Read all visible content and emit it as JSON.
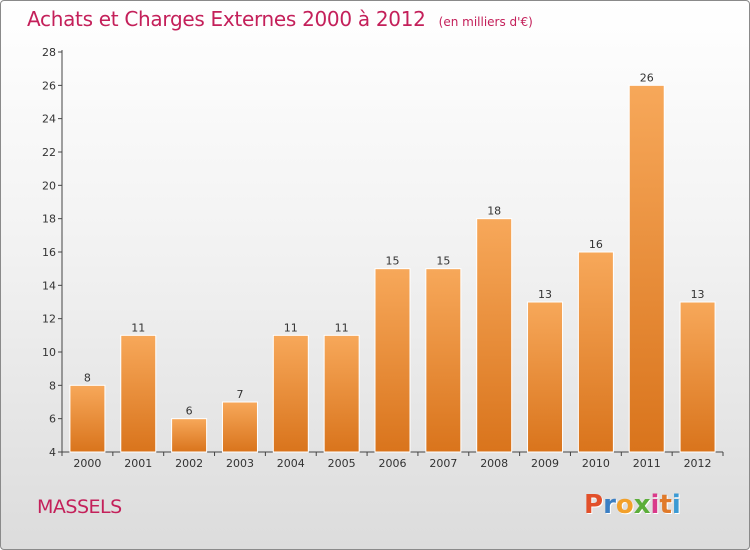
{
  "header": {
    "title": "Achats et Charges Externes 2000 à 2012",
    "unit": "(en milliers d'€)"
  },
  "commune": "MASSELS",
  "logo": {
    "letters": [
      "P",
      "r",
      "o",
      "x",
      "i",
      "t",
      "i"
    ],
    "colors": [
      "#e2502a",
      "#3b7fc4",
      "#f2a02a",
      "#5cae3a",
      "#d93a8a",
      "#e07a2a",
      "#3b9ad4"
    ]
  },
  "colors": {
    "bar_top": "#f7a85a",
    "bar_bottom": "#d9741c",
    "title": "#c4205a",
    "axis": "#444444"
  },
  "chart_data": {
    "type": "bar",
    "categories": [
      "2000",
      "2001",
      "2002",
      "2003",
      "2004",
      "2005",
      "2006",
      "2007",
      "2008",
      "2009",
      "2010",
      "2011",
      "2012"
    ],
    "values": [
      8,
      11,
      6,
      7,
      11,
      11,
      15,
      15,
      18,
      13,
      16,
      26,
      13
    ],
    "title": "Achats et Charges Externes 2000 à 2012",
    "ylim": [
      4,
      28
    ],
    "yticks": [
      4,
      6,
      8,
      10,
      12,
      14,
      16,
      18,
      20,
      22,
      24,
      26,
      28
    ],
    "grid": false,
    "legend": "none"
  }
}
